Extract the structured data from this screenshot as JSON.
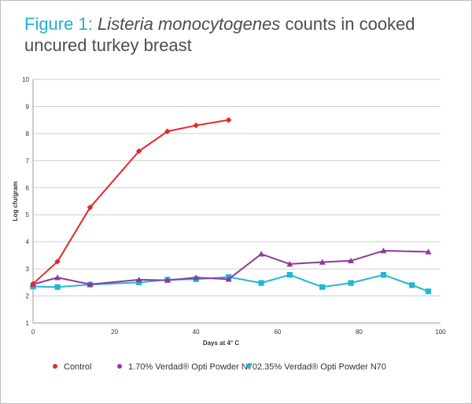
{
  "title": {
    "figure": "Figure 1:",
    "italic": "Listeria monocytogenes",
    "rest": "counts in cooked uncured turkey breast"
  },
  "chart_data": {
    "type": "line",
    "xlabel": "Days at 4° C",
    "ylabel": "Log cfu/gram",
    "xlim": [
      0,
      100
    ],
    "ylim": [
      1,
      10
    ],
    "xticks": [
      0,
      20,
      40,
      60,
      80,
      100
    ],
    "yticks": [
      1,
      2,
      3,
      4,
      5,
      6,
      7,
      8,
      9,
      10
    ],
    "grid": "horizontal",
    "legend_position": "bottom",
    "series": [
      {
        "name": "Control",
        "color": "#e8262b",
        "marker": "diamond",
        "x": [
          0,
          6,
          14,
          26,
          33,
          40,
          48
        ],
        "y": [
          2.45,
          3.27,
          5.27,
          7.35,
          8.08,
          8.3,
          8.5
        ]
      },
      {
        "name": "1.70% Verdad® Opti Powder N70",
        "color": "#8e3a9c",
        "marker": "triangle",
        "x": [
          0,
          6,
          14,
          26,
          33,
          40,
          48,
          56,
          63,
          71,
          78,
          86,
          97
        ],
        "y": [
          2.43,
          2.68,
          2.43,
          2.6,
          2.58,
          2.68,
          2.62,
          3.55,
          3.18,
          3.25,
          3.3,
          3.67,
          3.63
        ]
      },
      {
        "name": "2.35% Verdad® Opti Powder N70",
        "color": "#20b7d4",
        "marker": "square",
        "x": [
          0,
          6,
          14,
          26,
          33,
          40,
          48,
          56,
          63,
          71,
          78,
          86,
          93,
          97
        ],
        "y": [
          2.35,
          2.33,
          2.42,
          2.5,
          2.6,
          2.62,
          2.7,
          2.48,
          2.78,
          2.33,
          2.48,
          2.78,
          2.4,
          2.17
        ]
      }
    ]
  }
}
